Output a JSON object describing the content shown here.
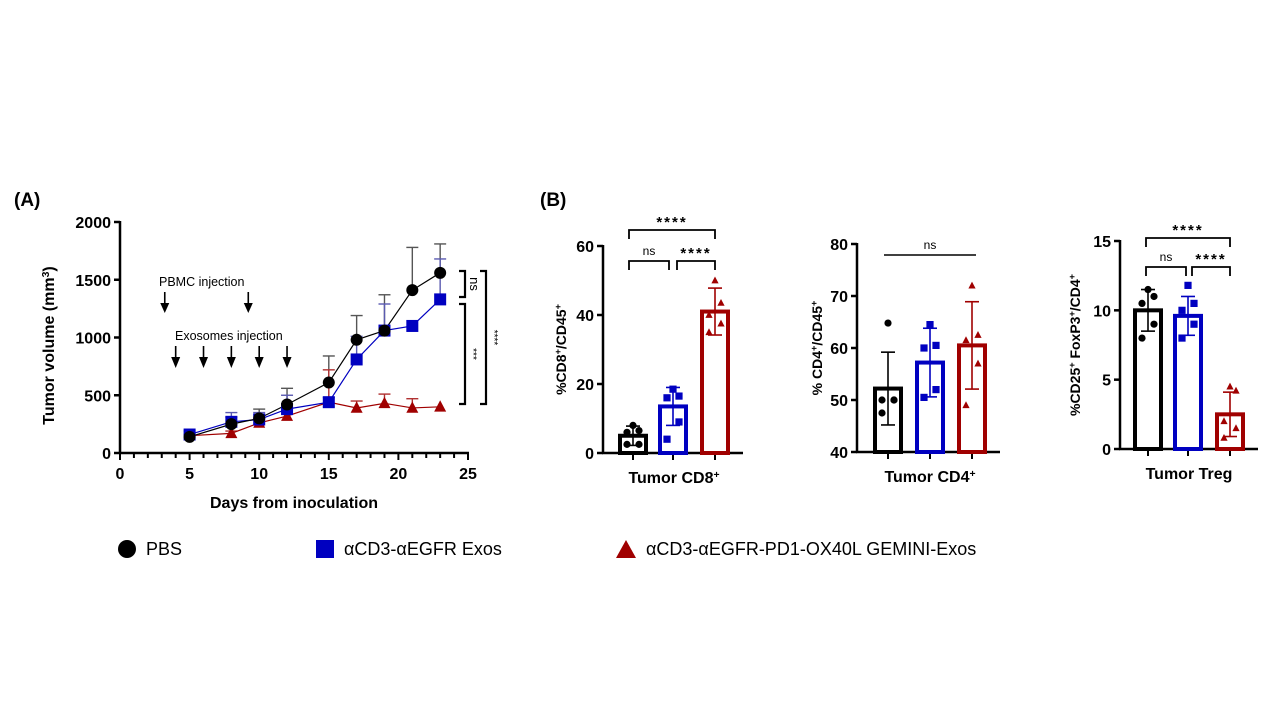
{
  "panels": {
    "a_label": "(A)",
    "b_label": "(B)"
  },
  "legend": [
    {
      "name": "PBS",
      "marker": "circle",
      "color": "#000000"
    },
    {
      "name": "αCD3-αEGFR Exos",
      "marker": "square",
      "color": "#0000c0"
    },
    {
      "name": "αCD3-αEGFR-PD1-OX40L GEMINI-Exos",
      "marker": "triangle",
      "color": "#a00000"
    }
  ],
  "chart_data": [
    {
      "type": "line",
      "panel": "A",
      "title": "",
      "xlabel": "Days from inoculation",
      "ylabel": "Tumor volume (mm3)",
      "xlim": [
        0,
        25
      ],
      "ylim": [
        0,
        2000
      ],
      "xticks": [
        "0",
        "5",
        "10",
        "15",
        "20",
        "25"
      ],
      "yticks": [
        "0",
        "500",
        "1000",
        "1500",
        "2000"
      ],
      "annotations": {
        "pbmc_label": "PBMC injection",
        "pbmc_days": [
          3,
          9
        ],
        "exo_label": "Exosomes injection",
        "exo_days": [
          4,
          6,
          8,
          10,
          12
        ]
      },
      "significance": [
        {
          "label": "ns",
          "between": [
            "PBS",
            "αCD3-αEGFR Exos"
          ]
        },
        {
          "label": "***",
          "between": [
            "αCD3-αEGFR Exos",
            "αCD3-αEGFR-PD1-OX40L GEMINI-Exos"
          ]
        },
        {
          "label": "****",
          "between": [
            "PBS",
            "αCD3-αEGFR-PD1-OX40L GEMINI-Exos"
          ]
        }
      ],
      "x": [
        5,
        8,
        10,
        12,
        15,
        17,
        19,
        21,
        23
      ],
      "series": [
        {
          "name": "PBS",
          "color": "#000000",
          "marker": "circle",
          "values": [
            140,
            250,
            300,
            420,
            610,
            980,
            1060,
            1410,
            1560
          ],
          "err": [
            20,
            60,
            80,
            140,
            230,
            210,
            310,
            370,
            250
          ]
        },
        {
          "name": "αCD3-αEGFR Exos",
          "color": "#0000c0",
          "marker": "square",
          "values": [
            160,
            270,
            290,
            380,
            440,
            810,
            1060,
            1100,
            1330
          ],
          "err": [
            30,
            80,
            60,
            120,
            40,
            200,
            230,
            0,
            350
          ]
        },
        {
          "name": "αCD3-αEGFR-PD1-OX40L GEMINI-Exos",
          "color": "#a00000",
          "marker": "triangle",
          "values": [
            150,
            170,
            260,
            320,
            440,
            390,
            430,
            390,
            400
          ],
          "err": [
            10,
            20,
            40,
            50,
            280,
            60,
            80,
            80,
            0
          ]
        }
      ]
    },
    {
      "type": "bar",
      "panel": "B1",
      "xlabel": "Tumor CD8+",
      "ylabel": "%CD8+/CD45+",
      "ylim": [
        0,
        60
      ],
      "yticks": [
        "0",
        "20",
        "40",
        "60"
      ],
      "categories": [
        "PBS",
        "αCD3-αEGFR Exos",
        "αCD3-αEGFR-PD1-OX40L GEMINI-Exos"
      ],
      "values": [
        5,
        13.5,
        41
      ],
      "err": [
        2.8,
        5.5,
        6.8
      ],
      "points": [
        [
          2.5,
          2.5,
          6,
          6.5,
          8
        ],
        [
          4,
          9,
          16,
          16.5,
          18.5
        ],
        [
          35,
          37.5,
          40,
          43.5,
          50
        ]
      ],
      "significance": [
        {
          "label": "ns",
          "between": [
            0,
            1
          ]
        },
        {
          "label": "****",
          "between": [
            1,
            2
          ]
        },
        {
          "label": "****",
          "between": [
            0,
            2
          ]
        }
      ]
    },
    {
      "type": "bar",
      "panel": "B2",
      "xlabel": "Tumor CD4+",
      "ylabel": "% CD4+/CD45+",
      "ylim": [
        40,
        80
      ],
      "yticks": [
        "40",
        "50",
        "60",
        "70",
        "80"
      ],
      "categories": [
        "PBS",
        "αCD3-αEGFR Exos",
        "αCD3-αEGFR-PD1-OX40L GEMINI-Exos"
      ],
      "values": [
        52.2,
        57.2,
        60.5
      ],
      "err": [
        7,
        6.6,
        8.4
      ],
      "points": [
        [
          47.5,
          50,
          50,
          50,
          64.8
        ],
        [
          50.5,
          52,
          60,
          60.5,
          64.5
        ],
        [
          49,
          57,
          61.5,
          62.5,
          72
        ]
      ],
      "significance": [
        {
          "label": "ns",
          "between": [
            0,
            2
          ]
        }
      ]
    },
    {
      "type": "bar",
      "panel": "B3",
      "xlabel": "Tumor Treg",
      "ylabel": "%CD25+ FoxP3+/CD4+",
      "ylim": [
        0,
        15
      ],
      "yticks": [
        "0",
        "5",
        "10",
        "15"
      ],
      "categories": [
        "PBS",
        "αCD3-αEGFR Exos",
        "αCD3-αEGFR-PD1-OX40L GEMINI-Exos"
      ],
      "values": [
        10,
        9.6,
        2.5
      ],
      "err": [
        1.5,
        1.4,
        1.6
      ],
      "points": [
        [
          8,
          9,
          10.5,
          11,
          11.5
        ],
        [
          8,
          9,
          10,
          10.5,
          11.8
        ],
        [
          0.8,
          1.5,
          2,
          4.2,
          4.5
        ]
      ],
      "significance": [
        {
          "label": "ns",
          "between": [
            0,
            1
          ]
        },
        {
          "label": "****",
          "between": [
            1,
            2
          ]
        },
        {
          "label": "****",
          "between": [
            0,
            2
          ]
        }
      ]
    }
  ]
}
